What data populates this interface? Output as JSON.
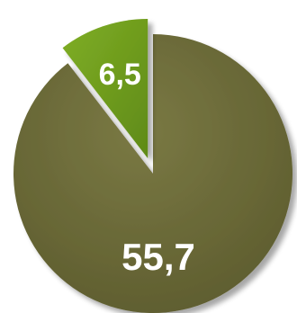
{
  "chart_data": {
    "type": "pie",
    "slices": [
      {
        "value": 55.7,
        "label": "55,7",
        "color": "#6b6a37",
        "exploded": false
      },
      {
        "value": 6.5,
        "label": "6,5",
        "color": "#6f9a1e",
        "exploded": true
      }
    ],
    "start_angle_deg": 0,
    "direction": "clockwise",
    "legend": "none",
    "style": "3d-shadow"
  }
}
